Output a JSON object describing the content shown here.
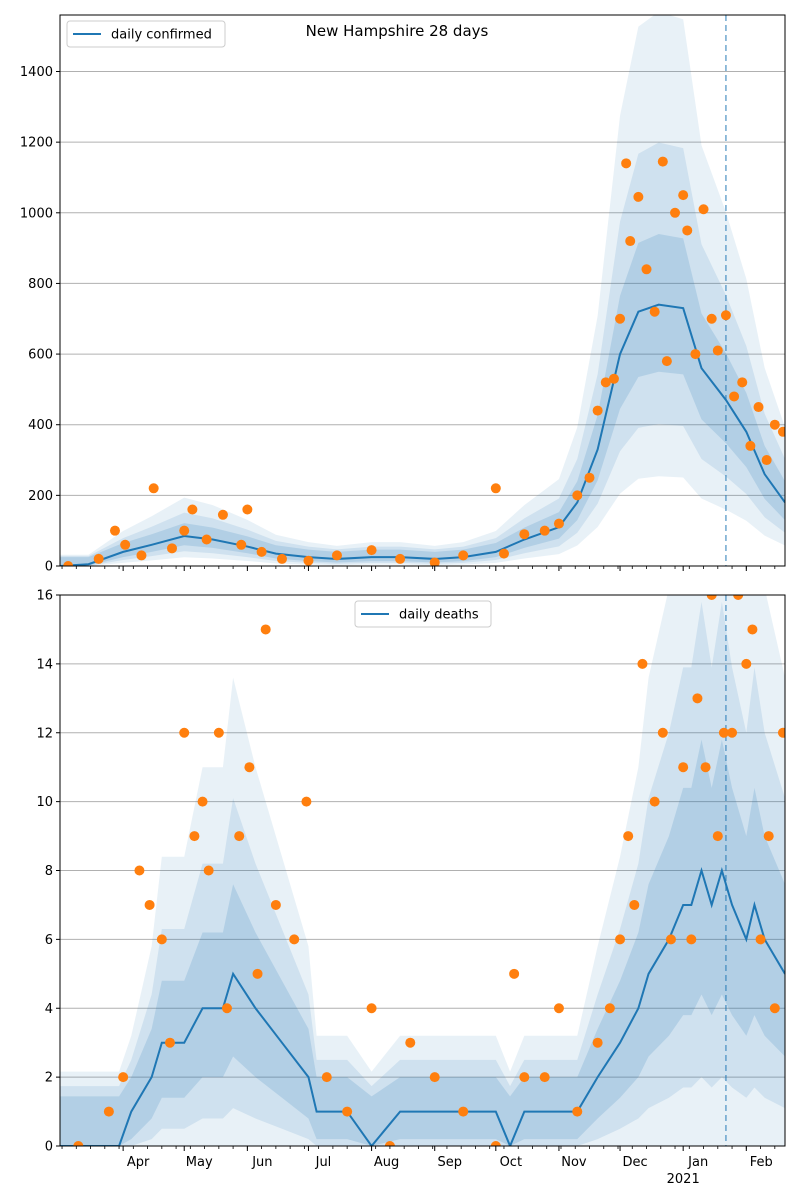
{
  "title": "New Hampshire 28 days",
  "colors": {
    "line": "#1f77b4",
    "points": "#ff7f0e",
    "band": "#1f77b4",
    "grid": "#b0b0b0",
    "vline": "#1f77b4"
  },
  "chart_data": [
    {
      "type": "line",
      "name": "confirmed-chart",
      "legend": "daily confirmed",
      "legend_position": "top-left",
      "title": "New Hampshire 28 days",
      "xlim": [
        "2020-03-01",
        "2021-02-20"
      ],
      "ylim": [
        0,
        1560
      ],
      "yticks": [
        0,
        200,
        400,
        600,
        800,
        1000,
        1200,
        1400
      ],
      "grid": "y",
      "forecast_start": "2021-01-22",
      "series": [
        {
          "name": "daily confirmed",
          "style": "line",
          "x": [
            "2020-03-01",
            "2020-03-15",
            "2020-04-01",
            "2020-04-15",
            "2020-05-01",
            "2020-05-15",
            "2020-06-01",
            "2020-06-15",
            "2020-07-01",
            "2020-07-15",
            "2020-08-01",
            "2020-08-15",
            "2020-09-01",
            "2020-09-15",
            "2020-10-01",
            "2020-10-15",
            "2020-11-01",
            "2020-11-10",
            "2020-11-20",
            "2020-12-01",
            "2020-12-10",
            "2020-12-20",
            "2021-01-01",
            "2021-01-10",
            "2021-01-22",
            "2021-02-01",
            "2021-02-10",
            "2021-02-20"
          ],
          "y": [
            0,
            5,
            40,
            60,
            85,
            75,
            55,
            35,
            25,
            20,
            25,
            25,
            20,
            25,
            40,
            75,
            110,
            180,
            330,
            600,
            720,
            740,
            730,
            560,
            470,
            380,
            260,
            180
          ]
        },
        {
          "name": "daily observed",
          "style": "points",
          "x": [
            "2020-03-05",
            "2020-03-20",
            "2020-03-28",
            "2020-04-02",
            "2020-04-10",
            "2020-04-16",
            "2020-04-25",
            "2020-05-01",
            "2020-05-05",
            "2020-05-12",
            "2020-05-20",
            "2020-05-29",
            "2020-06-01",
            "2020-06-08",
            "2020-06-18",
            "2020-07-01",
            "2020-07-15",
            "2020-08-01",
            "2020-08-15",
            "2020-09-01",
            "2020-09-15",
            "2020-10-01",
            "2020-10-05",
            "2020-10-15",
            "2020-10-25",
            "2020-11-01",
            "2020-11-10",
            "2020-11-16",
            "2020-11-20",
            "2020-11-24",
            "2020-11-28",
            "2020-12-01",
            "2020-12-04",
            "2020-12-06",
            "2020-12-10",
            "2020-12-14",
            "2020-12-18",
            "2020-12-22",
            "2020-12-24",
            "2020-12-28",
            "2021-01-01",
            "2021-01-03",
            "2021-01-07",
            "2021-01-11",
            "2021-01-15",
            "2021-01-18",
            "2021-01-22",
            "2021-01-26",
            "2021-01-30",
            "2021-02-03",
            "2021-02-07",
            "2021-02-11",
            "2021-02-15",
            "2021-02-19"
          ],
          "y": [
            0,
            20,
            100,
            60,
            30,
            220,
            50,
            100,
            160,
            75,
            145,
            60,
            160,
            40,
            20,
            15,
            30,
            45,
            20,
            10,
            30,
            220,
            35,
            90,
            100,
            120,
            200,
            250,
            440,
            520,
            530,
            700,
            1140,
            920,
            1045,
            840,
            720,
            1145,
            580,
            1000,
            1050,
            950,
            600,
            1010,
            700,
            610,
            710,
            480,
            520,
            340,
            450,
            300,
            400,
            380
          ]
        }
      ]
    },
    {
      "type": "line",
      "name": "deaths-chart",
      "legend": "daily deaths",
      "legend_position": "top-center",
      "xlim": [
        "2020-03-01",
        "2021-02-20"
      ],
      "ylim": [
        0,
        16
      ],
      "yticks": [
        0,
        2,
        4,
        6,
        8,
        10,
        12,
        14,
        16
      ],
      "xticks": [
        "Apr",
        "May",
        "Jun",
        "Jul",
        "Aug",
        "Sep",
        "Oct",
        "Nov",
        "Dec",
        "Jan",
        "Feb"
      ],
      "xtick_dates": [
        "2020-04-01",
        "2020-05-01",
        "2020-06-01",
        "2020-07-01",
        "2020-08-01",
        "2020-09-01",
        "2020-10-01",
        "2020-11-01",
        "2020-12-01",
        "2021-01-01",
        "2021-02-01"
      ],
      "year_label": "2021",
      "grid": "y",
      "forecast_start": "2021-01-22",
      "series": [
        {
          "name": "daily deaths",
          "style": "line",
          "x": [
            "2020-03-01",
            "2020-03-30",
            "2020-04-05",
            "2020-04-15",
            "2020-04-20",
            "2020-05-01",
            "2020-05-10",
            "2020-05-20",
            "2020-05-25",
            "2020-06-05",
            "2020-06-18",
            "2020-07-01",
            "2020-07-05",
            "2020-07-20",
            "2020-08-01",
            "2020-08-15",
            "2020-09-01",
            "2020-09-15",
            "2020-10-01",
            "2020-10-08",
            "2020-10-15",
            "2020-10-25",
            "2020-11-01",
            "2020-11-10",
            "2020-11-20",
            "2020-12-01",
            "2020-12-10",
            "2020-12-15",
            "2020-12-25",
            "2021-01-01",
            "2021-01-05",
            "2021-01-10",
            "2021-01-15",
            "2021-01-20",
            "2021-01-25",
            "2021-02-01",
            "2021-02-05",
            "2021-02-10",
            "2021-02-20"
          ],
          "y": [
            0,
            0,
            1,
            2,
            3,
            3,
            4,
            4,
            5,
            4,
            3,
            2,
            1,
            1,
            0,
            1,
            1,
            1,
            1,
            0,
            1,
            1,
            1,
            1,
            2,
            3,
            4,
            5,
            6,
            7,
            7,
            8,
            7,
            8,
            7,
            6,
            7,
            6,
            5
          ]
        },
        {
          "name": "daily observed",
          "style": "points",
          "x": [
            "2020-03-10",
            "2020-03-25",
            "2020-04-01",
            "2020-04-09",
            "2020-04-14",
            "2020-04-20",
            "2020-04-24",
            "2020-05-01",
            "2020-05-06",
            "2020-05-10",
            "2020-05-13",
            "2020-05-18",
            "2020-05-22",
            "2020-05-28",
            "2020-06-02",
            "2020-06-06",
            "2020-06-10",
            "2020-06-15",
            "2020-06-24",
            "2020-06-30",
            "2020-07-10",
            "2020-07-20",
            "2020-08-01",
            "2020-08-10",
            "2020-08-20",
            "2020-09-01",
            "2020-09-15",
            "2020-10-01",
            "2020-10-10",
            "2020-10-15",
            "2020-10-25",
            "2020-11-01",
            "2020-11-10",
            "2020-11-20",
            "2020-11-26",
            "2020-12-01",
            "2020-12-05",
            "2020-12-08",
            "2020-12-12",
            "2020-12-18",
            "2020-12-22",
            "2020-12-26",
            "2021-01-01",
            "2021-01-05",
            "2021-01-08",
            "2021-01-12",
            "2021-01-15",
            "2021-01-18",
            "2021-01-21",
            "2021-01-25",
            "2021-01-28",
            "2021-02-01",
            "2021-02-04",
            "2021-02-08",
            "2021-02-12",
            "2021-02-15",
            "2021-02-19"
          ],
          "y": [
            0,
            1,
            2,
            8,
            7,
            6,
            3,
            12,
            9,
            10,
            8,
            12,
            4,
            9,
            11,
            5,
            15,
            7,
            6,
            10,
            2,
            1,
            4,
            0,
            3,
            2,
            1,
            0,
            5,
            2,
            2,
            4,
            1,
            3,
            4,
            6,
            9,
            7,
            14,
            10,
            12,
            6,
            11,
            6,
            13,
            11,
            16,
            9,
            12,
            12,
            16,
            14,
            15,
            6,
            9,
            4,
            12
          ]
        }
      ]
    }
  ]
}
